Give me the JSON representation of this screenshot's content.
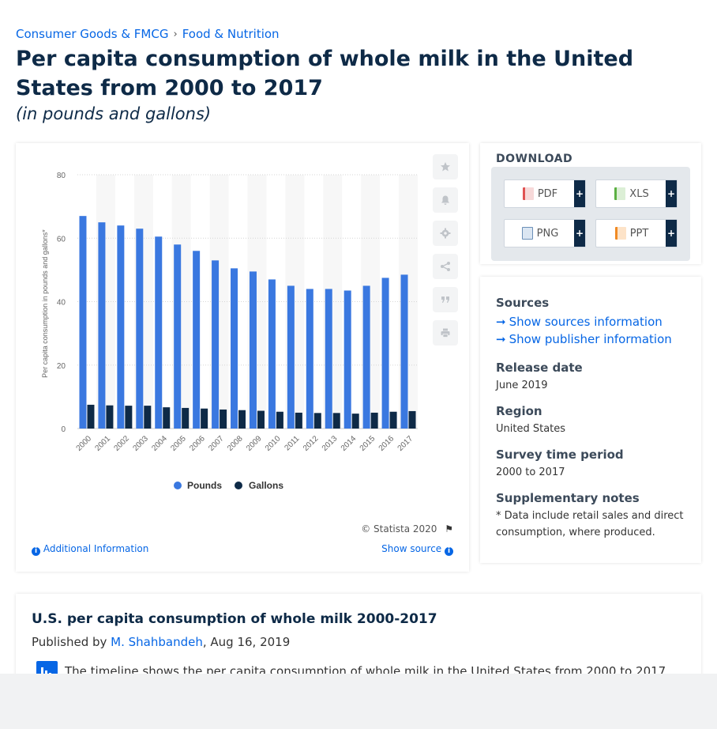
{
  "breadcrumb": {
    "item1": "Consumer Goods & FMCG",
    "sep": "›",
    "item2": "Food & Nutrition"
  },
  "title": "Per capita consumption of whole milk in the United States from 2000 to 2017",
  "subtitle": "(in pounds and gallons)",
  "chart_card": {
    "copyright": "© Statista 2020",
    "additional_info": "Additional Information",
    "show_source": "Show source",
    "toolbar": [
      "star-icon",
      "bell-icon",
      "gear-icon",
      "share-icon",
      "quote-icon",
      "print-icon"
    ]
  },
  "colors": {
    "pounds": "#3a78e0",
    "gallons": "#0e2a47",
    "accent": "#0666e5",
    "title": "#0e2a47"
  },
  "chart_data": {
    "type": "bar",
    "categories": [
      "2000",
      "2001",
      "2002",
      "2003",
      "2004",
      "2005",
      "2006",
      "2007",
      "2008",
      "2009",
      "2010",
      "2011",
      "2012",
      "2013",
      "2014",
      "2015",
      "2016",
      "2017"
    ],
    "series": [
      {
        "name": "Pounds",
        "values": [
          67.0,
          65.0,
          64.0,
          63.0,
          60.5,
          58.0,
          56.0,
          53.0,
          50.5,
          49.5,
          47.0,
          45.0,
          44.0,
          44.0,
          43.5,
          45.0,
          47.5,
          48.5
        ]
      },
      {
        "name": "Gallons",
        "values": [
          7.5,
          7.3,
          7.2,
          7.2,
          6.7,
          6.5,
          6.3,
          6.0,
          5.8,
          5.6,
          5.3,
          5.0,
          4.9,
          4.9,
          4.7,
          5.0,
          5.3,
          5.5
        ]
      }
    ],
    "ylabel": "Per capita consumption in pounds and gallons*",
    "yticks": [
      0,
      20,
      40,
      60,
      80
    ],
    "ylim": [
      0,
      80
    ],
    "legend": "bottom",
    "grid": true
  },
  "download": {
    "heading": "DOWNLOAD",
    "buttons": [
      {
        "label": "PDF",
        "icon": "pdf-file-icon",
        "color": "#e05252"
      },
      {
        "label": "XLS",
        "icon": "xls-file-icon",
        "color": "#5bb043"
      },
      {
        "label": "PNG",
        "icon": "png-file-icon",
        "color": "#6b8fb8"
      },
      {
        "label": "PPT",
        "icon": "ppt-file-icon",
        "color": "#f08a24"
      }
    ],
    "plus": "+"
  },
  "info": {
    "sources_heading": "Sources",
    "show_sources": "Show sources information",
    "show_publisher": "Show publisher information",
    "release_heading": "Release date",
    "release_value": "June 2019",
    "region_heading": "Region",
    "region_value": "United States",
    "survey_heading": "Survey time period",
    "survey_value": "2000 to 2017",
    "notes_heading": "Supplementary notes",
    "notes_value": "* Data include retail sales and direct consumption, where produced."
  },
  "article": {
    "title": "U.S. per capita consumption of whole milk 2000-2017",
    "published_prefix": "Published by",
    "author": "M. Shahbandeh",
    "date": ", Aug 16, 2019",
    "description": "The timeline shows the per capita consumption of whole milk in the United States from 2000 to 2017."
  }
}
